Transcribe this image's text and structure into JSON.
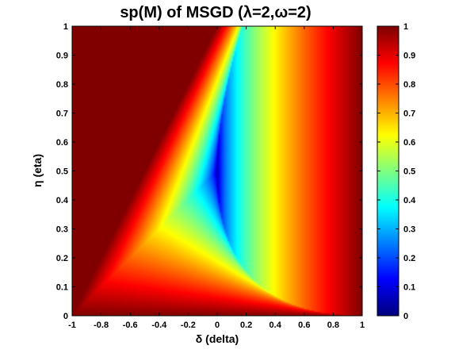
{
  "chart_data": {
    "type": "heatmap",
    "title": "sp(M) of MSGD (λ=2,ω=2)",
    "xlabel": "δ (delta)",
    "ylabel": "η (eta)",
    "xlim": [
      -1,
      1
    ],
    "ylim": [
      0,
      1
    ],
    "clim": [
      0,
      1
    ],
    "colormap": "jet",
    "x_ticks": [
      "-1",
      "-0.8",
      "-0.6",
      "-0.4",
      "-0.2",
      "0",
      "0.2",
      "0.4",
      "0.6",
      "0.8",
      "1"
    ],
    "y_ticks": [
      "0",
      "0.1",
      "0.2",
      "0.3",
      "0.4",
      "0.5",
      "0.6",
      "0.7",
      "0.8",
      "0.9",
      "1"
    ],
    "colorbar_ticks": [
      "0",
      "0.1",
      "0.2",
      "0.3",
      "0.4",
      "0.5",
      "0.6",
      "0.7",
      "0.8",
      "0.9",
      "1"
    ],
    "lambda": 2,
    "omega": 2,
    "grid": false,
    "colorbar": "right"
  }
}
